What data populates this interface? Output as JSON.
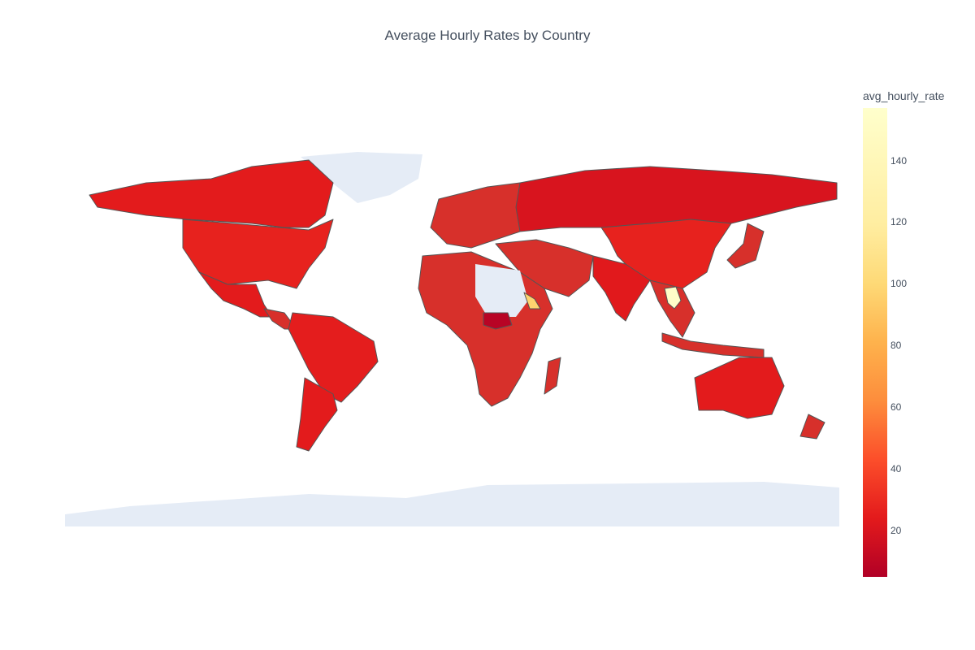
{
  "title": "Average Hourly Rates by Country",
  "colorbar": {
    "title": "avg_hourly_rate",
    "min": 5,
    "max": 157,
    "ticks": [
      "140",
      "120",
      "100",
      "80",
      "60",
      "40",
      "20"
    ],
    "colorscale": [
      "#b10026",
      "#e31a1c",
      "#fc4e2a",
      "#fd8d3c",
      "#feb24c",
      "#fed976",
      "#ffeda0",
      "#ffffcc"
    ]
  },
  "colors": {
    "land_default": "#d7302b",
    "land_no_data": "#e5ecf6",
    "border": "#555555"
  },
  "regions": [
    {
      "name": "Canada",
      "value": 27
    },
    {
      "name": "United States",
      "value": 30
    },
    {
      "name": "Greenland",
      "value": null
    },
    {
      "name": "Mexico",
      "value": 27
    },
    {
      "name": "Brazil",
      "value": 28
    },
    {
      "name": "Argentina",
      "value": 27
    },
    {
      "name": "Russia",
      "value": 22
    },
    {
      "name": "China",
      "value": 30
    },
    {
      "name": "India",
      "value": 26
    },
    {
      "name": "Australia",
      "value": 27
    },
    {
      "name": "Central African Republic",
      "value": 8
    },
    {
      "name": "Sudan",
      "value": null
    },
    {
      "name": "Laos",
      "value": 155
    },
    {
      "name": "Eritrea",
      "value": 110
    },
    {
      "name": "Antarctica",
      "value": null
    }
  ]
}
